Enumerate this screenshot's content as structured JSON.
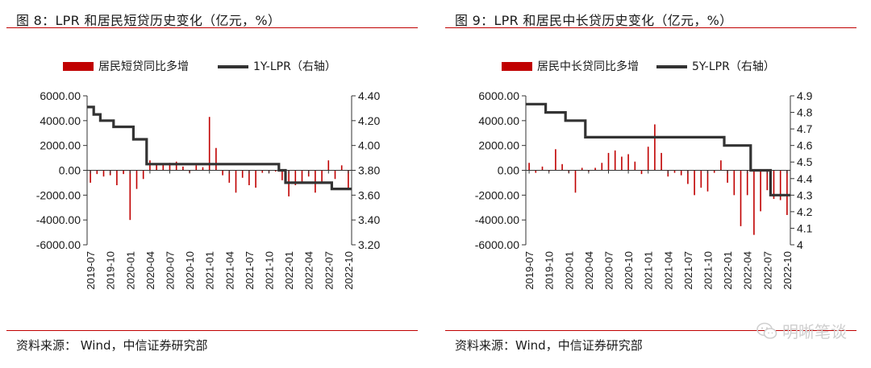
{
  "figures": [
    {
      "title": "图 8：LPR 和居民短贷历史变化（亿元，%）",
      "source": "资料来源：   Wind，中信证券研究部"
    },
    {
      "title": "图 9：LPR 和居民中长贷历史变化（亿元，%）",
      "source": "资料来源：Wind，中信证券研究部"
    }
  ],
  "watermark": {
    "text": "明晰笔谈",
    "icon": "wechat-icon"
  },
  "colors": {
    "bar": "#c00000",
    "line": "#333333",
    "rule": "#c00000"
  },
  "chart_data": [
    {
      "type": "bar+line",
      "title": "图 8：LPR 和居民短贷历史变化（亿元，%）",
      "categories": [
        "2019-07",
        "2019-08",
        "2019-09",
        "2019-10",
        "2019-11",
        "2019-12",
        "2020-01",
        "2020-02",
        "2020-03",
        "2020-04",
        "2020-05",
        "2020-06",
        "2020-07",
        "2020-08",
        "2020-09",
        "2020-10",
        "2020-11",
        "2020-12",
        "2021-01",
        "2021-02",
        "2021-03",
        "2021-04",
        "2021-05",
        "2021-06",
        "2021-07",
        "2021-08",
        "2021-09",
        "2021-10",
        "2021-11",
        "2021-12",
        "2022-01",
        "2022-02",
        "2022-03",
        "2022-04",
        "2022-05",
        "2022-06",
        "2022-07",
        "2022-08",
        "2022-09",
        "2022-10"
      ],
      "x_tick_labels": [
        "2019-07",
        "2019-10",
        "2020-01",
        "2020-04",
        "2020-07",
        "2020-10",
        "2021-01",
        "2021-04",
        "2021-07",
        "2021-10",
        "2022-01",
        "2022-04",
        "2022-07",
        "2022-10"
      ],
      "series": [
        {
          "name": "居民短贷同比多增",
          "axis": "left",
          "kind": "bar",
          "values": [
            -1000,
            -300,
            -500,
            -400,
            -1200,
            -300,
            -4000,
            -1500,
            -700,
            800,
            500,
            500,
            600,
            700,
            300,
            -200,
            400,
            250,
            4300,
            1800,
            -400,
            -1000,
            -1800,
            -600,
            -1200,
            -1400,
            -200,
            -200,
            -100,
            -800,
            -2100,
            -1200,
            -1000,
            -500,
            -1800,
            -1000,
            800,
            -700,
            400,
            -1500
          ]
        },
        {
          "name": "1Y-LPR（右轴）",
          "axis": "right",
          "kind": "line",
          "values": [
            4.31,
            4.25,
            4.2,
            4.2,
            4.15,
            4.15,
            4.15,
            4.05,
            4.05,
            3.85,
            3.85,
            3.85,
            3.85,
            3.85,
            3.85,
            3.85,
            3.85,
            3.85,
            3.85,
            3.85,
            3.85,
            3.85,
            3.85,
            3.85,
            3.85,
            3.85,
            3.85,
            3.85,
            3.85,
            3.8,
            3.7,
            3.7,
            3.7,
            3.7,
            3.7,
            3.7,
            3.7,
            3.65,
            3.65,
            3.65
          ]
        }
      ],
      "y_left": {
        "ylim": [
          -6000,
          6000
        ],
        "ticks": [
          "6000.00",
          "4000.00",
          "2000.00",
          "0.00",
          "-2000.00",
          "-4000.00",
          "-6000.00"
        ]
      },
      "y_right": {
        "ylim": [
          3.2,
          4.4
        ],
        "ticks": [
          "4.40",
          "4.20",
          "4.00",
          "3.80",
          "3.60",
          "3.40",
          "3.20"
        ]
      },
      "legend": [
        "居民短贷同比多增",
        "1Y-LPR（右轴）"
      ],
      "legend_position": "top-center"
    },
    {
      "type": "bar+line",
      "title": "图 9：LPR 和居民中长贷历史变化（亿元，%）",
      "categories": [
        "2019-07",
        "2019-08",
        "2019-09",
        "2019-10",
        "2019-11",
        "2019-12",
        "2020-01",
        "2020-02",
        "2020-03",
        "2020-04",
        "2020-05",
        "2020-06",
        "2020-07",
        "2020-08",
        "2020-09",
        "2020-10",
        "2020-11",
        "2020-12",
        "2021-01",
        "2021-02",
        "2021-03",
        "2021-04",
        "2021-05",
        "2021-06",
        "2021-07",
        "2021-08",
        "2021-09",
        "2021-10",
        "2021-11",
        "2021-12",
        "2022-01",
        "2022-02",
        "2022-03",
        "2022-04",
        "2022-05",
        "2022-06",
        "2022-07",
        "2022-08",
        "2022-09",
        "2022-10"
      ],
      "x_tick_labels": [
        "2019-07",
        "2019-10",
        "2020-01",
        "2020-04",
        "2020-07",
        "2020-10",
        "2021-01",
        "2021-04",
        "2021-07",
        "2021-10",
        "2022-01",
        "2022-04",
        "2022-07",
        "2022-10"
      ],
      "series": [
        {
          "name": "居民中长贷同比多增",
          "axis": "left",
          "kind": "bar",
          "values": [
            600,
            -200,
            300,
            -100,
            1700,
            500,
            -200,
            -1800,
            200,
            -100,
            200,
            600,
            1400,
            1600,
            1100,
            1300,
            700,
            -300,
            1900,
            3700,
            1400,
            -500,
            -200,
            -400,
            -1100,
            -2000,
            -1400,
            -1700,
            -200,
            800,
            -1000,
            -2000,
            -4500,
            -2000,
            -5200,
            -3300,
            -1600,
            -2300,
            -2400,
            -3600
          ]
        },
        {
          "name": "5Y-LPR（右轴）",
          "axis": "right",
          "kind": "line",
          "values": [
            4.85,
            4.85,
            4.85,
            4.8,
            4.8,
            4.8,
            4.75,
            4.75,
            4.75,
            4.65,
            4.65,
            4.65,
            4.65,
            4.65,
            4.65,
            4.65,
            4.65,
            4.65,
            4.65,
            4.65,
            4.65,
            4.65,
            4.65,
            4.65,
            4.65,
            4.65,
            4.65,
            4.65,
            4.65,
            4.65,
            4.6,
            4.6,
            4.6,
            4.6,
            4.45,
            4.45,
            4.45,
            4.3,
            4.3,
            4.3
          ]
        }
      ],
      "y_left": {
        "ylim": [
          -6000,
          6000
        ],
        "ticks": [
          "6000.00",
          "4000.00",
          "2000.00",
          "0.00",
          "-2000.00",
          "-4000.00",
          "-6000.00"
        ]
      },
      "y_right": {
        "ylim": [
          4.0,
          4.9
        ],
        "ticks": [
          "4.9",
          "4.8",
          "4.7",
          "4.6",
          "4.5",
          "4.4",
          "4.3",
          "4.2",
          "4.1",
          "4"
        ]
      },
      "legend": [
        "居民中长贷同比多增",
        "5Y-LPR（右轴）"
      ],
      "legend_position": "top-center"
    }
  ]
}
